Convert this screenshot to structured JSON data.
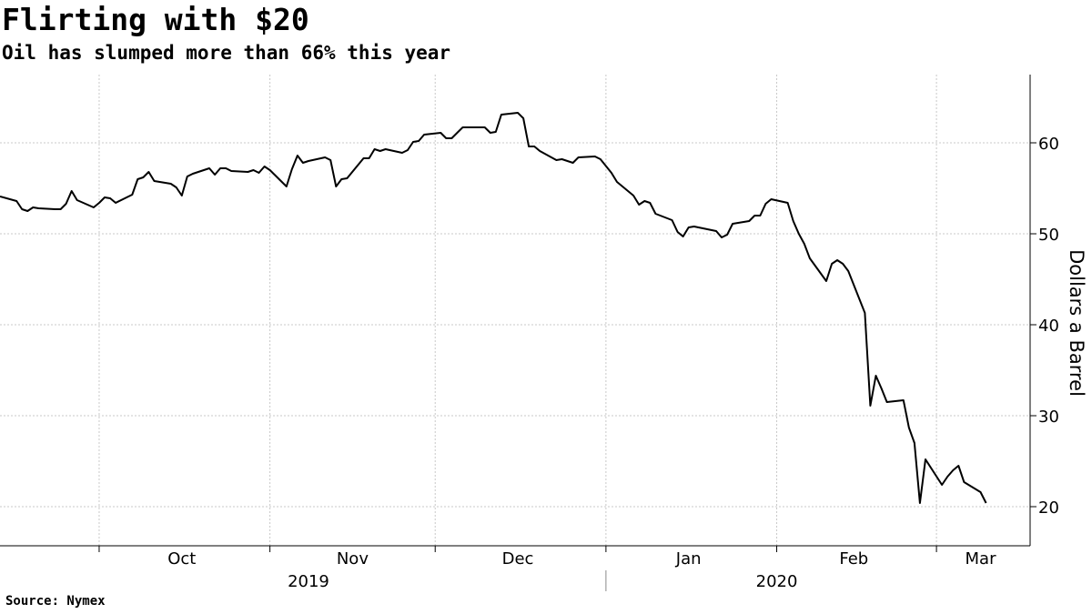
{
  "header": {
    "title": "Flirting with $20",
    "subtitle": "Oil has slumped more than 66% this year"
  },
  "footer": {
    "source": "Source: Nymex"
  },
  "colors": {
    "line": "#000000",
    "grid": "#c8c8c8",
    "axis": "#000000"
  },
  "chart_data": {
    "type": "line",
    "title": "Flirting with $20",
    "subtitle": "Oil has slumped more than 66% this year",
    "ylabel": "Dollars a Barrel",
    "xlabel": "",
    "y_ticks": [
      20,
      30,
      40,
      50,
      60
    ],
    "ylim": [
      15.7,
      67.5
    ],
    "y_axis_side": "right",
    "grid": true,
    "x_range": [
      "2019-09-13",
      "2020-03-18"
    ],
    "month_ticks": [
      {
        "label": "Oct",
        "date": "2019-10-01"
      },
      {
        "label": "Nov",
        "date": "2019-11-01"
      },
      {
        "label": "Dec",
        "date": "2019-12-01"
      },
      {
        "label": "Jan",
        "date": "2020-01-01"
      },
      {
        "label": "Feb",
        "date": "2020-02-01"
      },
      {
        "label": "Mar",
        "date": "2020-03-01"
      }
    ],
    "year_labels": [
      {
        "label": "2019",
        "date": "2019-11-08"
      },
      {
        "label": "2020",
        "date": "2020-02-01"
      }
    ],
    "year_divider": "2020-01-01",
    "series": [
      {
        "points": [
          [
            "2019-09-13",
            54.1
          ],
          [
            "2019-09-16",
            53.6
          ],
          [
            "2019-09-17",
            52.7
          ],
          [
            "2019-09-18",
            52.5
          ],
          [
            "2019-09-19",
            52.9
          ],
          [
            "2019-09-20",
            52.8
          ],
          [
            "2019-09-23",
            52.7
          ],
          [
            "2019-09-24",
            52.7
          ],
          [
            "2019-09-25",
            53.3
          ],
          [
            "2019-09-26",
            54.7
          ],
          [
            "2019-09-27",
            53.7
          ],
          [
            "2019-09-30",
            52.9
          ],
          [
            "2019-10-01",
            53.4
          ],
          [
            "2019-10-02",
            54.0
          ],
          [
            "2019-10-03",
            53.9
          ],
          [
            "2019-10-04",
            53.4
          ],
          [
            "2019-10-07",
            54.3
          ],
          [
            "2019-10-08",
            56.0
          ],
          [
            "2019-10-09",
            56.2
          ],
          [
            "2019-10-10",
            56.8
          ],
          [
            "2019-10-11",
            55.8
          ],
          [
            "2019-10-14",
            55.5
          ],
          [
            "2019-10-15",
            55.1
          ],
          [
            "2019-10-16",
            54.2
          ],
          [
            "2019-10-17",
            56.3
          ],
          [
            "2019-10-18",
            56.6
          ],
          [
            "2019-10-21",
            57.2
          ],
          [
            "2019-10-22",
            56.5
          ],
          [
            "2019-10-23",
            57.2
          ],
          [
            "2019-10-24",
            57.2
          ],
          [
            "2019-10-25",
            56.9
          ],
          [
            "2019-10-28",
            56.8
          ],
          [
            "2019-10-29",
            57.0
          ],
          [
            "2019-10-30",
            56.7
          ],
          [
            "2019-10-31",
            57.4
          ],
          [
            "2019-11-01",
            57.0
          ],
          [
            "2019-11-04",
            55.2
          ],
          [
            "2019-11-05",
            57.1
          ],
          [
            "2019-11-06",
            58.6
          ],
          [
            "2019-11-07",
            57.8
          ],
          [
            "2019-11-08",
            58.0
          ],
          [
            "2019-11-11",
            58.4
          ],
          [
            "2019-11-12",
            58.1
          ],
          [
            "2019-11-13",
            55.2
          ],
          [
            "2019-11-14",
            56.0
          ],
          [
            "2019-11-15",
            56.1
          ],
          [
            "2019-11-18",
            58.3
          ],
          [
            "2019-11-19",
            58.3
          ],
          [
            "2019-11-20",
            59.3
          ],
          [
            "2019-11-21",
            59.1
          ],
          [
            "2019-11-22",
            59.3
          ],
          [
            "2019-11-25",
            58.9
          ],
          [
            "2019-11-26",
            59.2
          ],
          [
            "2019-11-27",
            60.1
          ],
          [
            "2019-11-28",
            60.2
          ],
          [
            "2019-11-29",
            60.9
          ],
          [
            "2019-12-02",
            61.1
          ],
          [
            "2019-12-03",
            60.5
          ],
          [
            "2019-12-04",
            60.5
          ],
          [
            "2019-12-05",
            61.1
          ],
          [
            "2019-12-06",
            61.7
          ],
          [
            "2019-12-09",
            61.7
          ],
          [
            "2019-12-10",
            61.7
          ],
          [
            "2019-12-11",
            61.1
          ],
          [
            "2019-12-12",
            61.2
          ],
          [
            "2019-12-13",
            63.1
          ],
          [
            "2019-12-16",
            63.3
          ],
          [
            "2019-12-17",
            62.7
          ],
          [
            "2019-12-18",
            59.6
          ],
          [
            "2019-12-19",
            59.6
          ],
          [
            "2019-12-20",
            59.1
          ],
          [
            "2019-12-23",
            58.1
          ],
          [
            "2019-12-24",
            58.2
          ],
          [
            "2019-12-26",
            57.8
          ],
          [
            "2019-12-27",
            58.4
          ],
          [
            "2019-12-30",
            58.5
          ],
          [
            "2019-12-31",
            58.2
          ],
          [
            "2020-01-02",
            56.7
          ],
          [
            "2020-01-03",
            55.7
          ],
          [
            "2020-01-06",
            54.2
          ],
          [
            "2020-01-07",
            53.2
          ],
          [
            "2020-01-08",
            53.6
          ],
          [
            "2020-01-09",
            53.4
          ],
          [
            "2020-01-10",
            52.2
          ],
          [
            "2020-01-13",
            51.5
          ],
          [
            "2020-01-14",
            50.2
          ],
          [
            "2020-01-15",
            49.7
          ],
          [
            "2020-01-16",
            50.7
          ],
          [
            "2020-01-17",
            50.8
          ],
          [
            "2020-01-21",
            50.3
          ],
          [
            "2020-01-22",
            49.6
          ],
          [
            "2020-01-23",
            49.9
          ],
          [
            "2020-01-24",
            51.1
          ],
          [
            "2020-01-27",
            51.4
          ],
          [
            "2020-01-28",
            52.0
          ],
          [
            "2020-01-29",
            52.0
          ],
          [
            "2020-01-30",
            53.3
          ],
          [
            "2020-01-31",
            53.8
          ],
          [
            "2020-02-03",
            53.4
          ],
          [
            "2020-02-04",
            51.4
          ],
          [
            "2020-02-05",
            50.0
          ],
          [
            "2020-02-06",
            48.9
          ],
          [
            "2020-02-07",
            47.3
          ],
          [
            "2020-02-10",
            44.8
          ],
          [
            "2020-02-11",
            46.7
          ],
          [
            "2020-02-12",
            47.1
          ],
          [
            "2020-02-13",
            46.7
          ],
          [
            "2020-02-14",
            45.9
          ],
          [
            "2020-02-17",
            41.3
          ],
          [
            "2020-02-18",
            31.1
          ],
          [
            "2020-02-19",
            34.4
          ],
          [
            "2020-02-20",
            33.0
          ],
          [
            "2020-02-21",
            31.5
          ],
          [
            "2020-02-24",
            31.7
          ],
          [
            "2020-02-25",
            28.7
          ],
          [
            "2020-02-26",
            27.0
          ],
          [
            "2020-02-27",
            20.4
          ],
          [
            "2020-02-28",
            25.2
          ],
          [
            "2020-03-02",
            22.4
          ],
          [
            "2020-03-03",
            23.3
          ],
          [
            "2020-03-04",
            24.0
          ],
          [
            "2020-03-05",
            24.5
          ],
          [
            "2020-03-06",
            22.7
          ],
          [
            "2020-03-09",
            21.6
          ],
          [
            "2020-03-10",
            20.4
          ]
        ]
      }
    ]
  }
}
